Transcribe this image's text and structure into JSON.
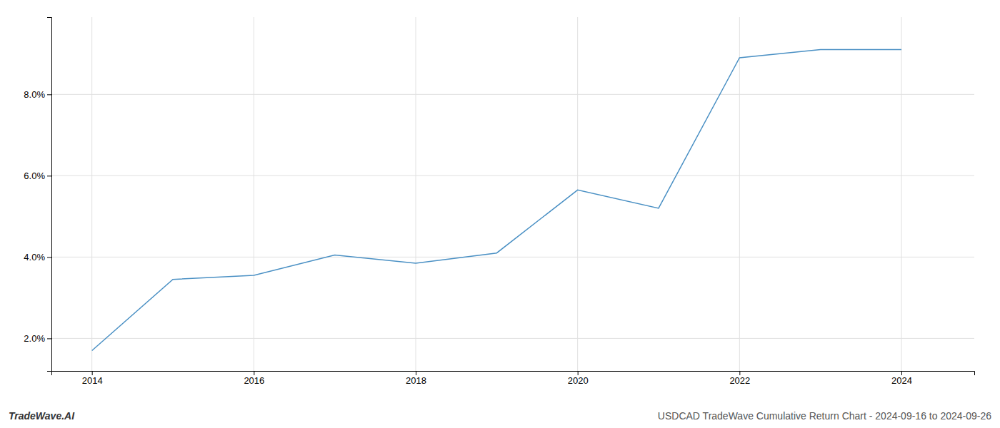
{
  "chart_data": {
    "type": "line",
    "x": [
      2014,
      2015,
      2016,
      2017,
      2018,
      2019,
      2020,
      2021,
      2022,
      2023,
      2024
    ],
    "values": [
      1.7,
      3.45,
      3.55,
      4.05,
      3.85,
      4.1,
      5.65,
      5.2,
      8.9,
      9.1,
      9.1
    ],
    "color": "#4a90c4",
    "xlim": [
      2013.5,
      2024.9
    ],
    "ylim": [
      1.2,
      9.9
    ],
    "xticks": [
      2014,
      2016,
      2018,
      2020,
      2022,
      2024
    ],
    "yticks": [
      {
        "value": 2.0,
        "label": "2.0%"
      },
      {
        "value": 4.0,
        "label": "4.0%"
      },
      {
        "value": 6.0,
        "label": "6.0%"
      },
      {
        "value": 8.0,
        "label": "8.0%"
      }
    ],
    "grid": true,
    "annotations": [
      "TradeWave.AI",
      "USDCAD TradeWave Cumulative Return Chart - 2024-09-16 to 2024-09-26"
    ]
  }
}
